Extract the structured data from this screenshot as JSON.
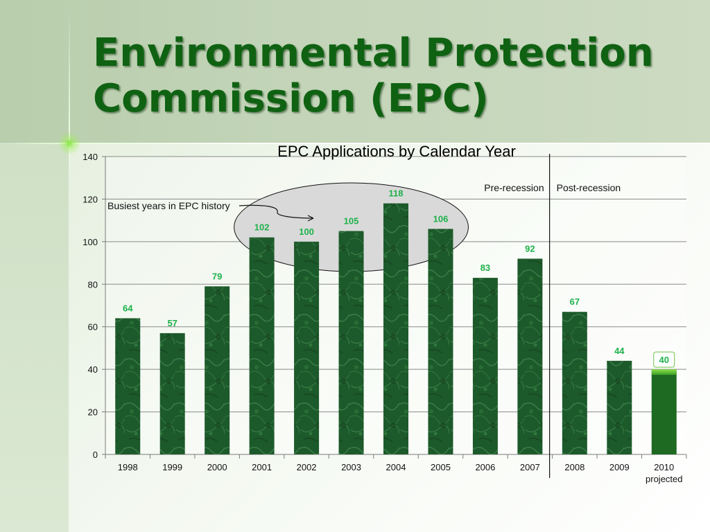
{
  "slide": {
    "title_line1": "Environmental Protection",
    "title_line2": "Commission (EPC)"
  },
  "colors": {
    "title": "#0f6212",
    "bar_fill": "#1d5a2b",
    "projected_fill": "#1e6a22",
    "value_label": "#1db14a"
  },
  "chart_data": {
    "type": "bar",
    "title": "EPC Applications by Calendar Year",
    "categories": [
      "1998",
      "1999",
      "2000",
      "2001",
      "2002",
      "2003",
      "2004",
      "2005",
      "2006",
      "2007",
      "2008",
      "2009",
      "2010"
    ],
    "category_sublabels": [
      "",
      "",
      "",
      "",
      "",
      "",
      "",
      "",
      "",
      "",
      "",
      "",
      "projected"
    ],
    "series": [
      {
        "values": [
          64,
          57,
          79,
          102,
          100,
          105,
          118,
          106,
          83,
          92,
          67,
          44,
          40
        ]
      }
    ],
    "projected_index": 12,
    "ylim": [
      0,
      140
    ],
    "yticks": [
      0,
      20,
      40,
      60,
      80,
      100,
      120,
      140
    ],
    "grid": true,
    "xlabel": "",
    "ylabel": "",
    "annotations": {
      "busiest_label": "Busiest years in EPC history",
      "busiest_range": [
        "2001",
        "2005"
      ],
      "pre_recession_label": "Pre-recession",
      "post_recession_label": "Post-recession",
      "divider_between": [
        "2007",
        "2008"
      ]
    }
  }
}
